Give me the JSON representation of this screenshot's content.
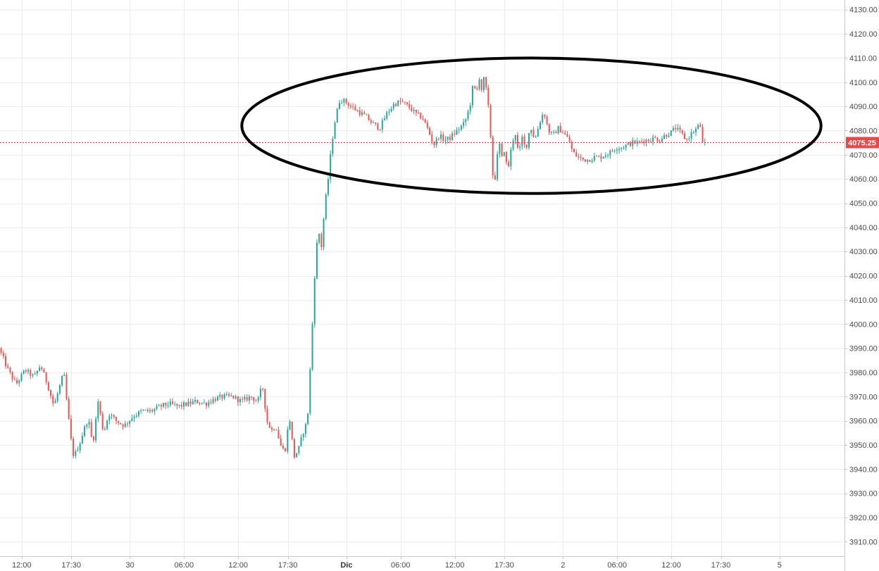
{
  "chart_data": {
    "type": "candlestick",
    "title": "",
    "xlabel": "",
    "ylabel": "",
    "ylim": [
      3904,
      4134
    ],
    "y_ticks": [
      3910,
      3920,
      3930,
      3940,
      3950,
      3960,
      3970,
      3980,
      3990,
      4000,
      4010,
      4020,
      4030,
      4040,
      4050,
      4060,
      4070,
      4080,
      4090,
      4100,
      4110,
      4120,
      4130
    ],
    "y_tick_labels": [
      "3910.00",
      "3920.00",
      "3930.00",
      "3940.00",
      "3950.00",
      "3960.00",
      "3970.00",
      "3980.00",
      "3990.00",
      "4000.00",
      "4010.00",
      "4020.00",
      "4030.00",
      "4040.00",
      "4050.00",
      "4060.00",
      "4070.00",
      "4080.00",
      "4090.00",
      "4100.00",
      "4110.00",
      "4120.00",
      "4130.00"
    ],
    "x_ticks": [
      {
        "label": "12:00",
        "t": 12.0,
        "bold": false
      },
      {
        "label": "17:30",
        "t": 17.5,
        "bold": false
      },
      {
        "label": "30",
        "t": 24.0,
        "bold": false
      },
      {
        "label": "06:00",
        "t": 30.0,
        "bold": false
      },
      {
        "label": "12:00",
        "t": 36.0,
        "bold": false
      },
      {
        "label": "17:30",
        "t": 41.5,
        "bold": false
      },
      {
        "label": "Dic",
        "t": 48.0,
        "bold": true
      },
      {
        "label": "06:00",
        "t": 54.0,
        "bold": false
      },
      {
        "label": "12:00",
        "t": 60.0,
        "bold": false
      },
      {
        "label": "17:30",
        "t": 65.5,
        "bold": false
      },
      {
        "label": "2",
        "t": 72.0,
        "bold": false
      },
      {
        "label": "06:00",
        "t": 78.0,
        "bold": false
      },
      {
        "label": "12:00",
        "t": 84.0,
        "bold": false
      },
      {
        "label": "17:30",
        "t": 89.5,
        "bold": false
      },
      {
        "label": "5",
        "t": 96.0,
        "bold": false
      }
    ],
    "xlim": [
      9.6,
      103.2
    ],
    "bar_width_hours": 0.25,
    "up_color": "#26a69a",
    "down_color": "#ef5350",
    "series": [
      {
        "path": [
          [
            9.6,
            3990
          ],
          [
            10.5,
            3982
          ],
          [
            11.5,
            3975
          ],
          [
            12.5,
            3981
          ],
          [
            13.5,
            3978
          ],
          [
            14.2,
            3983
          ],
          [
            15.0,
            3975
          ],
          [
            15.7,
            3966
          ],
          [
            16.4,
            3975
          ],
          [
            16.8,
            3980
          ],
          [
            17.2,
            3965
          ],
          [
            17.6,
            3952
          ],
          [
            17.9,
            3945
          ],
          [
            18.5,
            3950
          ],
          [
            19.0,
            3956
          ],
          [
            19.5,
            3961
          ],
          [
            20.0,
            3950
          ],
          [
            20.6,
            3968
          ],
          [
            21.2,
            3955
          ],
          [
            21.8,
            3963
          ],
          [
            22.6,
            3960
          ],
          [
            23.5,
            3958
          ],
          [
            24.5,
            3962
          ],
          [
            25.5,
            3964
          ],
          [
            26.5,
            3964
          ],
          [
            27.5,
            3966
          ],
          [
            28.5,
            3967
          ],
          [
            29.5,
            3966
          ],
          [
            30.5,
            3967
          ],
          [
            31.5,
            3968
          ],
          [
            32.5,
            3967
          ],
          [
            33.5,
            3969
          ],
          [
            34.5,
            3970
          ],
          [
            35.5,
            3970
          ],
          [
            36.5,
            3968
          ],
          [
            37.5,
            3970
          ],
          [
            38.3,
            3968
          ],
          [
            38.8,
            3975
          ],
          [
            39.3,
            3960
          ],
          [
            39.8,
            3956
          ],
          [
            40.3,
            3958
          ],
          [
            40.8,
            3950
          ],
          [
            41.3,
            3947
          ],
          [
            41.8,
            3962
          ],
          [
            42.3,
            3945
          ],
          [
            42.8,
            3948
          ],
          [
            43.3,
            3955
          ],
          [
            43.8,
            3960
          ],
          [
            44.2,
            3988
          ],
          [
            44.6,
            4020
          ],
          [
            45.0,
            4041
          ],
          [
            45.3,
            4030
          ],
          [
            45.7,
            4048
          ],
          [
            46.1,
            4060
          ],
          [
            46.5,
            4075
          ],
          [
            46.9,
            4085
          ],
          [
            47.4,
            4093
          ],
          [
            48.0,
            4092
          ],
          [
            48.6,
            4090
          ],
          [
            49.4,
            4088
          ],
          [
            50.2,
            4086
          ],
          [
            51.0,
            4083
          ],
          [
            51.8,
            4081
          ],
          [
            52.6,
            4087
          ],
          [
            53.4,
            4091
          ],
          [
            54.2,
            4092
          ],
          [
            55.0,
            4090
          ],
          [
            55.8,
            4087
          ],
          [
            56.6,
            4085
          ],
          [
            57.2,
            4080
          ],
          [
            57.8,
            4074
          ],
          [
            58.4,
            4078
          ],
          [
            59.0,
            4076
          ],
          [
            59.6,
            4077
          ],
          [
            60.4,
            4080
          ],
          [
            61.2,
            4083
          ],
          [
            61.8,
            4090
          ],
          [
            62.2,
            4100
          ],
          [
            62.5,
            4094
          ],
          [
            62.8,
            4103
          ],
          [
            63.1,
            4097
          ],
          [
            63.4,
            4102
          ],
          [
            63.8,
            4092
          ],
          [
            64.2,
            4073
          ],
          [
            64.4,
            4058
          ],
          [
            64.7,
            4062
          ],
          [
            65.0,
            4077
          ],
          [
            65.3,
            4068
          ],
          [
            65.6,
            4072
          ],
          [
            66.0,
            4063
          ],
          [
            66.4,
            4073
          ],
          [
            66.8,
            4080
          ],
          [
            67.2,
            4070
          ],
          [
            67.6,
            4077
          ],
          [
            68.0,
            4072
          ],
          [
            68.5,
            4082
          ],
          [
            69.0,
            4076
          ],
          [
            69.5,
            4083
          ],
          [
            70.0,
            4088
          ],
          [
            70.5,
            4080
          ],
          [
            71.0,
            4078
          ],
          [
            71.6,
            4081
          ],
          [
            72.2,
            4079
          ],
          [
            72.8,
            4076
          ],
          [
            73.2,
            4071
          ],
          [
            73.8,
            4069
          ],
          [
            74.4,
            4068
          ],
          [
            75.0,
            4068
          ],
          [
            75.6,
            4069
          ],
          [
            76.2,
            4069
          ],
          [
            76.8,
            4070
          ],
          [
            77.4,
            4071
          ],
          [
            78.0,
            4073
          ],
          [
            78.6,
            4073
          ],
          [
            79.2,
            4074
          ],
          [
            79.8,
            4075
          ],
          [
            80.4,
            4075
          ],
          [
            81.0,
            4076
          ],
          [
            81.6,
            4076
          ],
          [
            82.2,
            4077
          ],
          [
            82.8,
            4076
          ],
          [
            83.4,
            4078
          ],
          [
            84.0,
            4079
          ],
          [
            84.6,
            4081
          ],
          [
            85.2,
            4079
          ],
          [
            85.8,
            4076
          ],
          [
            86.4,
            4079
          ],
          [
            87.0,
            4081
          ],
          [
            87.3,
            4083
          ],
          [
            87.6,
            4075.25
          ]
        ]
      }
    ],
    "last_price": 4075.25,
    "last_price_label": "4075.25",
    "last_price_color": "#e84848",
    "annotation": {
      "type": "ellipse",
      "t_center": 68.5,
      "y_center": 4082,
      "t_radius": 32.1,
      "y_radius": 28
    },
    "grid": true,
    "legend": "none"
  }
}
